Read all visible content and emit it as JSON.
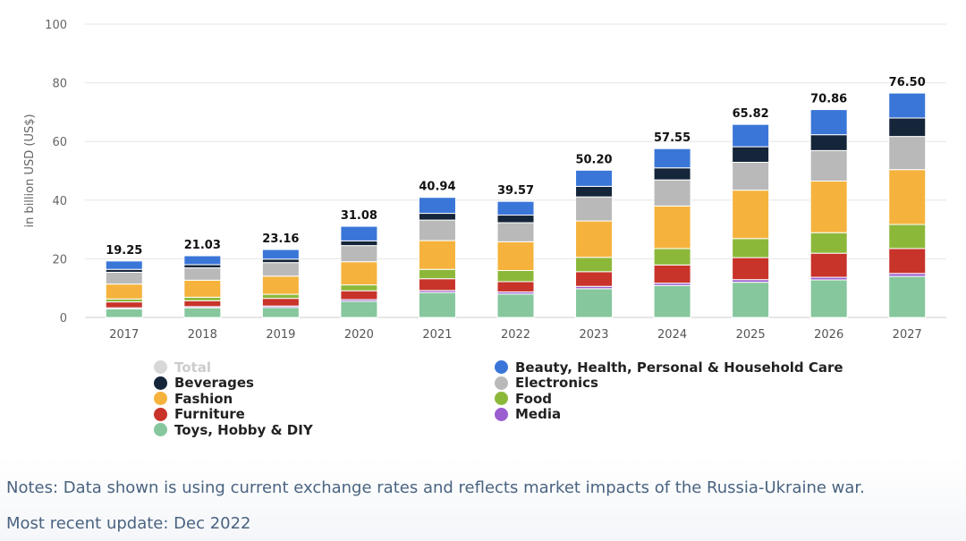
{
  "colors": {
    "Total": "#c8c8c8",
    "Beauty, Health, Personal & Household Care": "#3a76d8",
    "Beverages": "#15253a",
    "Electronics": "#b9b9b9",
    "Fashion": "#f5b33d",
    "Food": "#8cb83a",
    "Furniture": "#c8332a",
    "Media": "#9b5ed0",
    "Toys, Hobby & DIY": "#86c79d"
  },
  "legend": {
    "col1": [
      {
        "label": "Total",
        "hidden": true
      },
      {
        "label": "Beverages",
        "hidden": false
      },
      {
        "label": "Fashion",
        "hidden": false
      },
      {
        "label": "Furniture",
        "hidden": false
      },
      {
        "label": "Toys, Hobby & DIY",
        "hidden": false
      }
    ],
    "col2": [
      {
        "label": "Beauty, Health, Personal & Household Care",
        "hidden": false
      },
      {
        "label": "Electronics",
        "hidden": false
      },
      {
        "label": "Food",
        "hidden": false
      },
      {
        "label": "Media",
        "hidden": false
      }
    ]
  },
  "chart_data": {
    "type": "bar",
    "stacked": true,
    "ylabel": "in billion USD (US$)",
    "xlabel": "",
    "ylim": [
      0,
      100
    ],
    "yticks": [
      0,
      20,
      40,
      60,
      80,
      100
    ],
    "categories": [
      "2017",
      "2018",
      "2019",
      "2020",
      "2021",
      "2022",
      "2023",
      "2024",
      "2025",
      "2026",
      "2027"
    ],
    "totals": [
      "19.25",
      "21.03",
      "23.16",
      "31.08",
      "40.94",
      "39.57",
      "50.20",
      "57.55",
      "65.82",
      "70.86",
      "76.50"
    ],
    "series": [
      {
        "name": "Toys, Hobby & DIY",
        "values": [
          2.9,
          3.3,
          3.4,
          5.5,
          8.5,
          8.0,
          9.8,
          10.9,
          12.0,
          12.8,
          14.0
        ]
      },
      {
        "name": "Media",
        "values": [
          0.4,
          0.4,
          0.5,
          0.6,
          0.7,
          0.7,
          0.8,
          0.8,
          0.9,
          0.9,
          1.0
        ]
      },
      {
        "name": "Furniture",
        "values": [
          2.0,
          2.0,
          2.6,
          3.0,
          4.0,
          3.5,
          5.0,
          6.2,
          7.5,
          8.2,
          8.5
        ]
      },
      {
        "name": "Food",
        "values": [
          1.0,
          1.2,
          1.4,
          2.0,
          3.2,
          3.8,
          4.9,
          5.6,
          6.5,
          7.0,
          8.2
        ]
      },
      {
        "name": "Fashion",
        "values": [
          5.1,
          5.8,
          6.2,
          7.9,
          9.8,
          9.8,
          12.4,
          14.5,
          16.5,
          17.6,
          18.7
        ]
      },
      {
        "name": "Electronics",
        "values": [
          4.0,
          4.2,
          4.6,
          5.5,
          7.0,
          6.5,
          8.2,
          8.9,
          9.5,
          10.4,
          11.3
        ]
      },
      {
        "name": "Beverages",
        "values": [
          1.0,
          1.1,
          1.2,
          1.6,
          2.3,
          2.6,
          3.6,
          4.1,
          5.3,
          5.4,
          6.3
        ]
      },
      {
        "name": "Beauty, Health, Personal & Household Care",
        "values": [
          2.85,
          3.03,
          3.26,
          4.98,
          5.44,
          4.67,
          5.5,
          6.55,
          7.62,
          8.56,
          8.5
        ]
      }
    ]
  },
  "notes": "Notes: Data shown is using current exchange rates and reflects market impacts of the Russia-Ukraine war.",
  "update": "Most recent update: Dec 2022"
}
